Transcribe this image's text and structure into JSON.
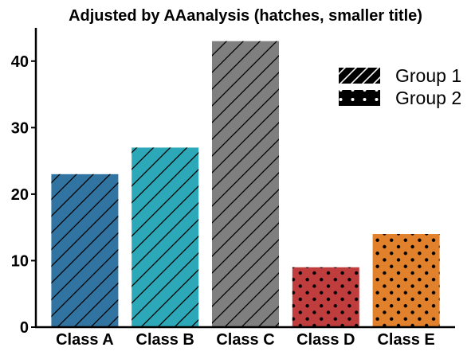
{
  "chart_data": {
    "type": "bar",
    "title": "Adjusted by AAanalysis (hatches, smaller title)",
    "xlabel": "",
    "ylabel": "",
    "categories": [
      "Class A",
      "Class B",
      "Class C",
      "Class D",
      "Class E"
    ],
    "values": [
      23,
      27,
      43,
      9,
      14
    ],
    "bar_colors": [
      "#3274a1",
      "#2ca8b8",
      "#7f7f7f",
      "#c03d3e",
      "#e1812c"
    ],
    "bar_groups": [
      "Group 1",
      "Group 1",
      "Group 1",
      "Group 2",
      "Group 2"
    ],
    "ylim": [
      0,
      45
    ],
    "yticks": [
      0,
      10,
      20,
      30,
      40
    ],
    "grid": false,
    "legend": {
      "position": "top-right",
      "entries": [
        {
          "label": "Group 1",
          "pattern": "diagonal-lines",
          "color": "#000000"
        },
        {
          "label": "Group 2",
          "pattern": "dots",
          "color": "#000000"
        }
      ]
    }
  }
}
